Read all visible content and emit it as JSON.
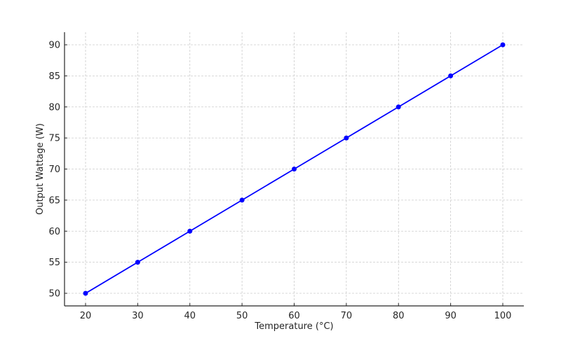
{
  "chart_data": {
    "type": "line",
    "title": "",
    "xlabel": "Temperature (°C)",
    "ylabel": "Output Wattage (W)",
    "x": [
      20,
      30,
      40,
      50,
      60,
      70,
      80,
      90,
      100
    ],
    "series": [
      {
        "name": "Output Wattage",
        "values": [
          50,
          55,
          60,
          65,
          70,
          75,
          80,
          85,
          90
        ],
        "color": "#0000ff",
        "marker": "circle"
      }
    ],
    "xticks": [
      20,
      30,
      40,
      50,
      60,
      70,
      80,
      90,
      100
    ],
    "yticks": [
      50,
      55,
      60,
      65,
      70,
      75,
      80,
      85,
      90
    ],
    "xlim": [
      16,
      104
    ],
    "ylim": [
      48,
      93
    ],
    "grid": true,
    "legend": null
  },
  "colors": {
    "line": "#0000ff",
    "axis": "#262626",
    "grid": "#cccccc"
  }
}
